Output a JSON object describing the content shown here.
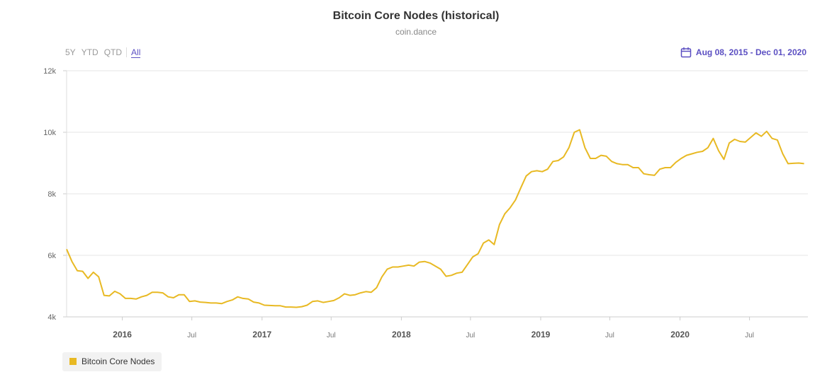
{
  "header": {
    "title": "Bitcoin Core Nodes (historical)",
    "subtitle": "coin.dance"
  },
  "range_selector": {
    "buttons": [
      "5Y",
      "YTD",
      "QTD",
      "All"
    ],
    "active": "All"
  },
  "date_range": {
    "label": "Aug 08, 2015 - Dec 01, 2020",
    "icon": "calendar-icon"
  },
  "colors": {
    "series": "#e8b923",
    "accent": "#5b4fc2"
  },
  "chart_data": {
    "type": "line",
    "title": "Bitcoin Core Nodes (historical)",
    "subtitle": "coin.dance",
    "x_axis": {
      "type": "date",
      "range": [
        "2015-08-08",
        "2020-12-01"
      ],
      "ticks": [
        {
          "date": "2016-01-01",
          "label": "2016",
          "major": true
        },
        {
          "date": "2016-07-01",
          "label": "Jul",
          "major": false
        },
        {
          "date": "2017-01-01",
          "label": "2017",
          "major": true
        },
        {
          "date": "2017-07-01",
          "label": "Jul",
          "major": false
        },
        {
          "date": "2018-01-01",
          "label": "2018",
          "major": true
        },
        {
          "date": "2018-07-01",
          "label": "Jul",
          "major": false
        },
        {
          "date": "2019-01-01",
          "label": "2019",
          "major": true
        },
        {
          "date": "2019-07-01",
          "label": "Jul",
          "major": false
        },
        {
          "date": "2020-01-01",
          "label": "2020",
          "major": true
        },
        {
          "date": "2020-07-01",
          "label": "Jul",
          "major": false
        }
      ]
    },
    "y_axis": {
      "range": [
        4000,
        12000
      ],
      "ticks": [
        {
          "value": 4000,
          "label": "4k"
        },
        {
          "value": 6000,
          "label": "6k"
        },
        {
          "value": 8000,
          "label": "8k"
        },
        {
          "value": 10000,
          "label": "10k"
        },
        {
          "value": 12000,
          "label": "12k"
        }
      ]
    },
    "grid": true,
    "legend_position": "bottom-left",
    "series": [
      {
        "name": "Bitcoin Core Nodes",
        "color": "#e8b923",
        "points": [
          [
            "2015-08-08",
            6200
          ],
          [
            "2015-08-22",
            5800
          ],
          [
            "2015-09-05",
            5500
          ],
          [
            "2015-09-19",
            5480
          ],
          [
            "2015-10-03",
            5250
          ],
          [
            "2015-10-17",
            5450
          ],
          [
            "2015-10-31",
            5300
          ],
          [
            "2015-11-14",
            4700
          ],
          [
            "2015-11-28",
            4680
          ],
          [
            "2015-12-12",
            4830
          ],
          [
            "2015-12-26",
            4750
          ],
          [
            "2016-01-09",
            4600
          ],
          [
            "2016-01-23",
            4600
          ],
          [
            "2016-02-06",
            4580
          ],
          [
            "2016-02-20",
            4650
          ],
          [
            "2016-03-05",
            4700
          ],
          [
            "2016-03-19",
            4800
          ],
          [
            "2016-04-02",
            4800
          ],
          [
            "2016-04-16",
            4780
          ],
          [
            "2016-04-30",
            4650
          ],
          [
            "2016-05-14",
            4620
          ],
          [
            "2016-05-28",
            4720
          ],
          [
            "2016-06-11",
            4720
          ],
          [
            "2016-06-25",
            4500
          ],
          [
            "2016-07-09",
            4520
          ],
          [
            "2016-07-23",
            4480
          ],
          [
            "2016-08-06",
            4470
          ],
          [
            "2016-08-20",
            4450
          ],
          [
            "2016-09-03",
            4450
          ],
          [
            "2016-09-17",
            4430
          ],
          [
            "2016-10-01",
            4500
          ],
          [
            "2016-10-15",
            4550
          ],
          [
            "2016-10-29",
            4650
          ],
          [
            "2016-11-12",
            4600
          ],
          [
            "2016-11-26",
            4580
          ],
          [
            "2016-12-10",
            4480
          ],
          [
            "2016-12-24",
            4450
          ],
          [
            "2017-01-07",
            4380
          ],
          [
            "2017-01-21",
            4370
          ],
          [
            "2017-02-04",
            4360
          ],
          [
            "2017-02-18",
            4360
          ],
          [
            "2017-03-04",
            4320
          ],
          [
            "2017-03-18",
            4320
          ],
          [
            "2017-04-01",
            4310
          ],
          [
            "2017-04-15",
            4330
          ],
          [
            "2017-04-29",
            4380
          ],
          [
            "2017-05-13",
            4500
          ],
          [
            "2017-05-27",
            4520
          ],
          [
            "2017-06-10",
            4470
          ],
          [
            "2017-06-24",
            4500
          ],
          [
            "2017-07-08",
            4530
          ],
          [
            "2017-07-22",
            4620
          ],
          [
            "2017-08-05",
            4750
          ],
          [
            "2017-08-19",
            4700
          ],
          [
            "2017-09-02",
            4720
          ],
          [
            "2017-09-16",
            4780
          ],
          [
            "2017-09-30",
            4820
          ],
          [
            "2017-10-14",
            4800
          ],
          [
            "2017-10-28",
            4950
          ],
          [
            "2017-11-11",
            5300
          ],
          [
            "2017-11-25",
            5550
          ],
          [
            "2017-12-09",
            5620
          ],
          [
            "2017-12-23",
            5620
          ],
          [
            "2018-01-06",
            5650
          ],
          [
            "2018-01-20",
            5680
          ],
          [
            "2018-02-03",
            5650
          ],
          [
            "2018-02-17",
            5780
          ],
          [
            "2018-03-03",
            5800
          ],
          [
            "2018-03-17",
            5750
          ],
          [
            "2018-03-31",
            5650
          ],
          [
            "2018-04-14",
            5550
          ],
          [
            "2018-04-28",
            5320
          ],
          [
            "2018-05-12",
            5350
          ],
          [
            "2018-05-26",
            5420
          ],
          [
            "2018-06-09",
            5450
          ],
          [
            "2018-06-23",
            5700
          ],
          [
            "2018-07-07",
            5950
          ],
          [
            "2018-07-21",
            6050
          ],
          [
            "2018-08-04",
            6400
          ],
          [
            "2018-08-18",
            6500
          ],
          [
            "2018-09-01",
            6350
          ],
          [
            "2018-09-15",
            7000
          ],
          [
            "2018-09-29",
            7350
          ],
          [
            "2018-10-13",
            7550
          ],
          [
            "2018-10-27",
            7800
          ],
          [
            "2018-11-10",
            8200
          ],
          [
            "2018-11-24",
            8580
          ],
          [
            "2018-12-08",
            8720
          ],
          [
            "2018-12-22",
            8750
          ],
          [
            "2019-01-05",
            8720
          ],
          [
            "2019-01-19",
            8800
          ],
          [
            "2019-02-02",
            9050
          ],
          [
            "2019-02-16",
            9080
          ],
          [
            "2019-03-02",
            9200
          ],
          [
            "2019-03-16",
            9500
          ],
          [
            "2019-03-30",
            10000
          ],
          [
            "2019-04-13",
            10080
          ],
          [
            "2019-04-27",
            9500
          ],
          [
            "2019-05-11",
            9150
          ],
          [
            "2019-05-25",
            9150
          ],
          [
            "2019-06-08",
            9250
          ],
          [
            "2019-06-22",
            9220
          ],
          [
            "2019-07-06",
            9050
          ],
          [
            "2019-07-20",
            8980
          ],
          [
            "2019-08-03",
            8950
          ],
          [
            "2019-08-17",
            8950
          ],
          [
            "2019-08-31",
            8850
          ],
          [
            "2019-09-14",
            8850
          ],
          [
            "2019-09-28",
            8650
          ],
          [
            "2019-10-12",
            8620
          ],
          [
            "2019-10-26",
            8600
          ],
          [
            "2019-11-09",
            8800
          ],
          [
            "2019-11-23",
            8850
          ],
          [
            "2019-12-07",
            8850
          ],
          [
            "2019-12-21",
            9020
          ],
          [
            "2020-01-04",
            9150
          ],
          [
            "2020-01-18",
            9250
          ],
          [
            "2020-02-01",
            9300
          ],
          [
            "2020-02-15",
            9350
          ],
          [
            "2020-02-29",
            9380
          ],
          [
            "2020-03-14",
            9500
          ],
          [
            "2020-03-28",
            9800
          ],
          [
            "2020-04-11",
            9400
          ],
          [
            "2020-04-25",
            9120
          ],
          [
            "2020-05-09",
            9650
          ],
          [
            "2020-05-23",
            9770
          ],
          [
            "2020-06-06",
            9700
          ],
          [
            "2020-06-20",
            9680
          ],
          [
            "2020-07-04",
            9830
          ],
          [
            "2020-07-18",
            9980
          ],
          [
            "2020-08-01",
            9870
          ],
          [
            "2020-08-15",
            10030
          ],
          [
            "2020-08-29",
            9800
          ],
          [
            "2020-09-12",
            9750
          ],
          [
            "2020-09-26",
            9300
          ],
          [
            "2020-10-10",
            8980
          ],
          [
            "2020-10-24",
            8990
          ],
          [
            "2020-11-07",
            9000
          ],
          [
            "2020-11-21",
            8980
          ]
        ]
      }
    ],
    "legend": [
      {
        "label": "Bitcoin Core Nodes",
        "color": "#e8b923"
      }
    ]
  }
}
